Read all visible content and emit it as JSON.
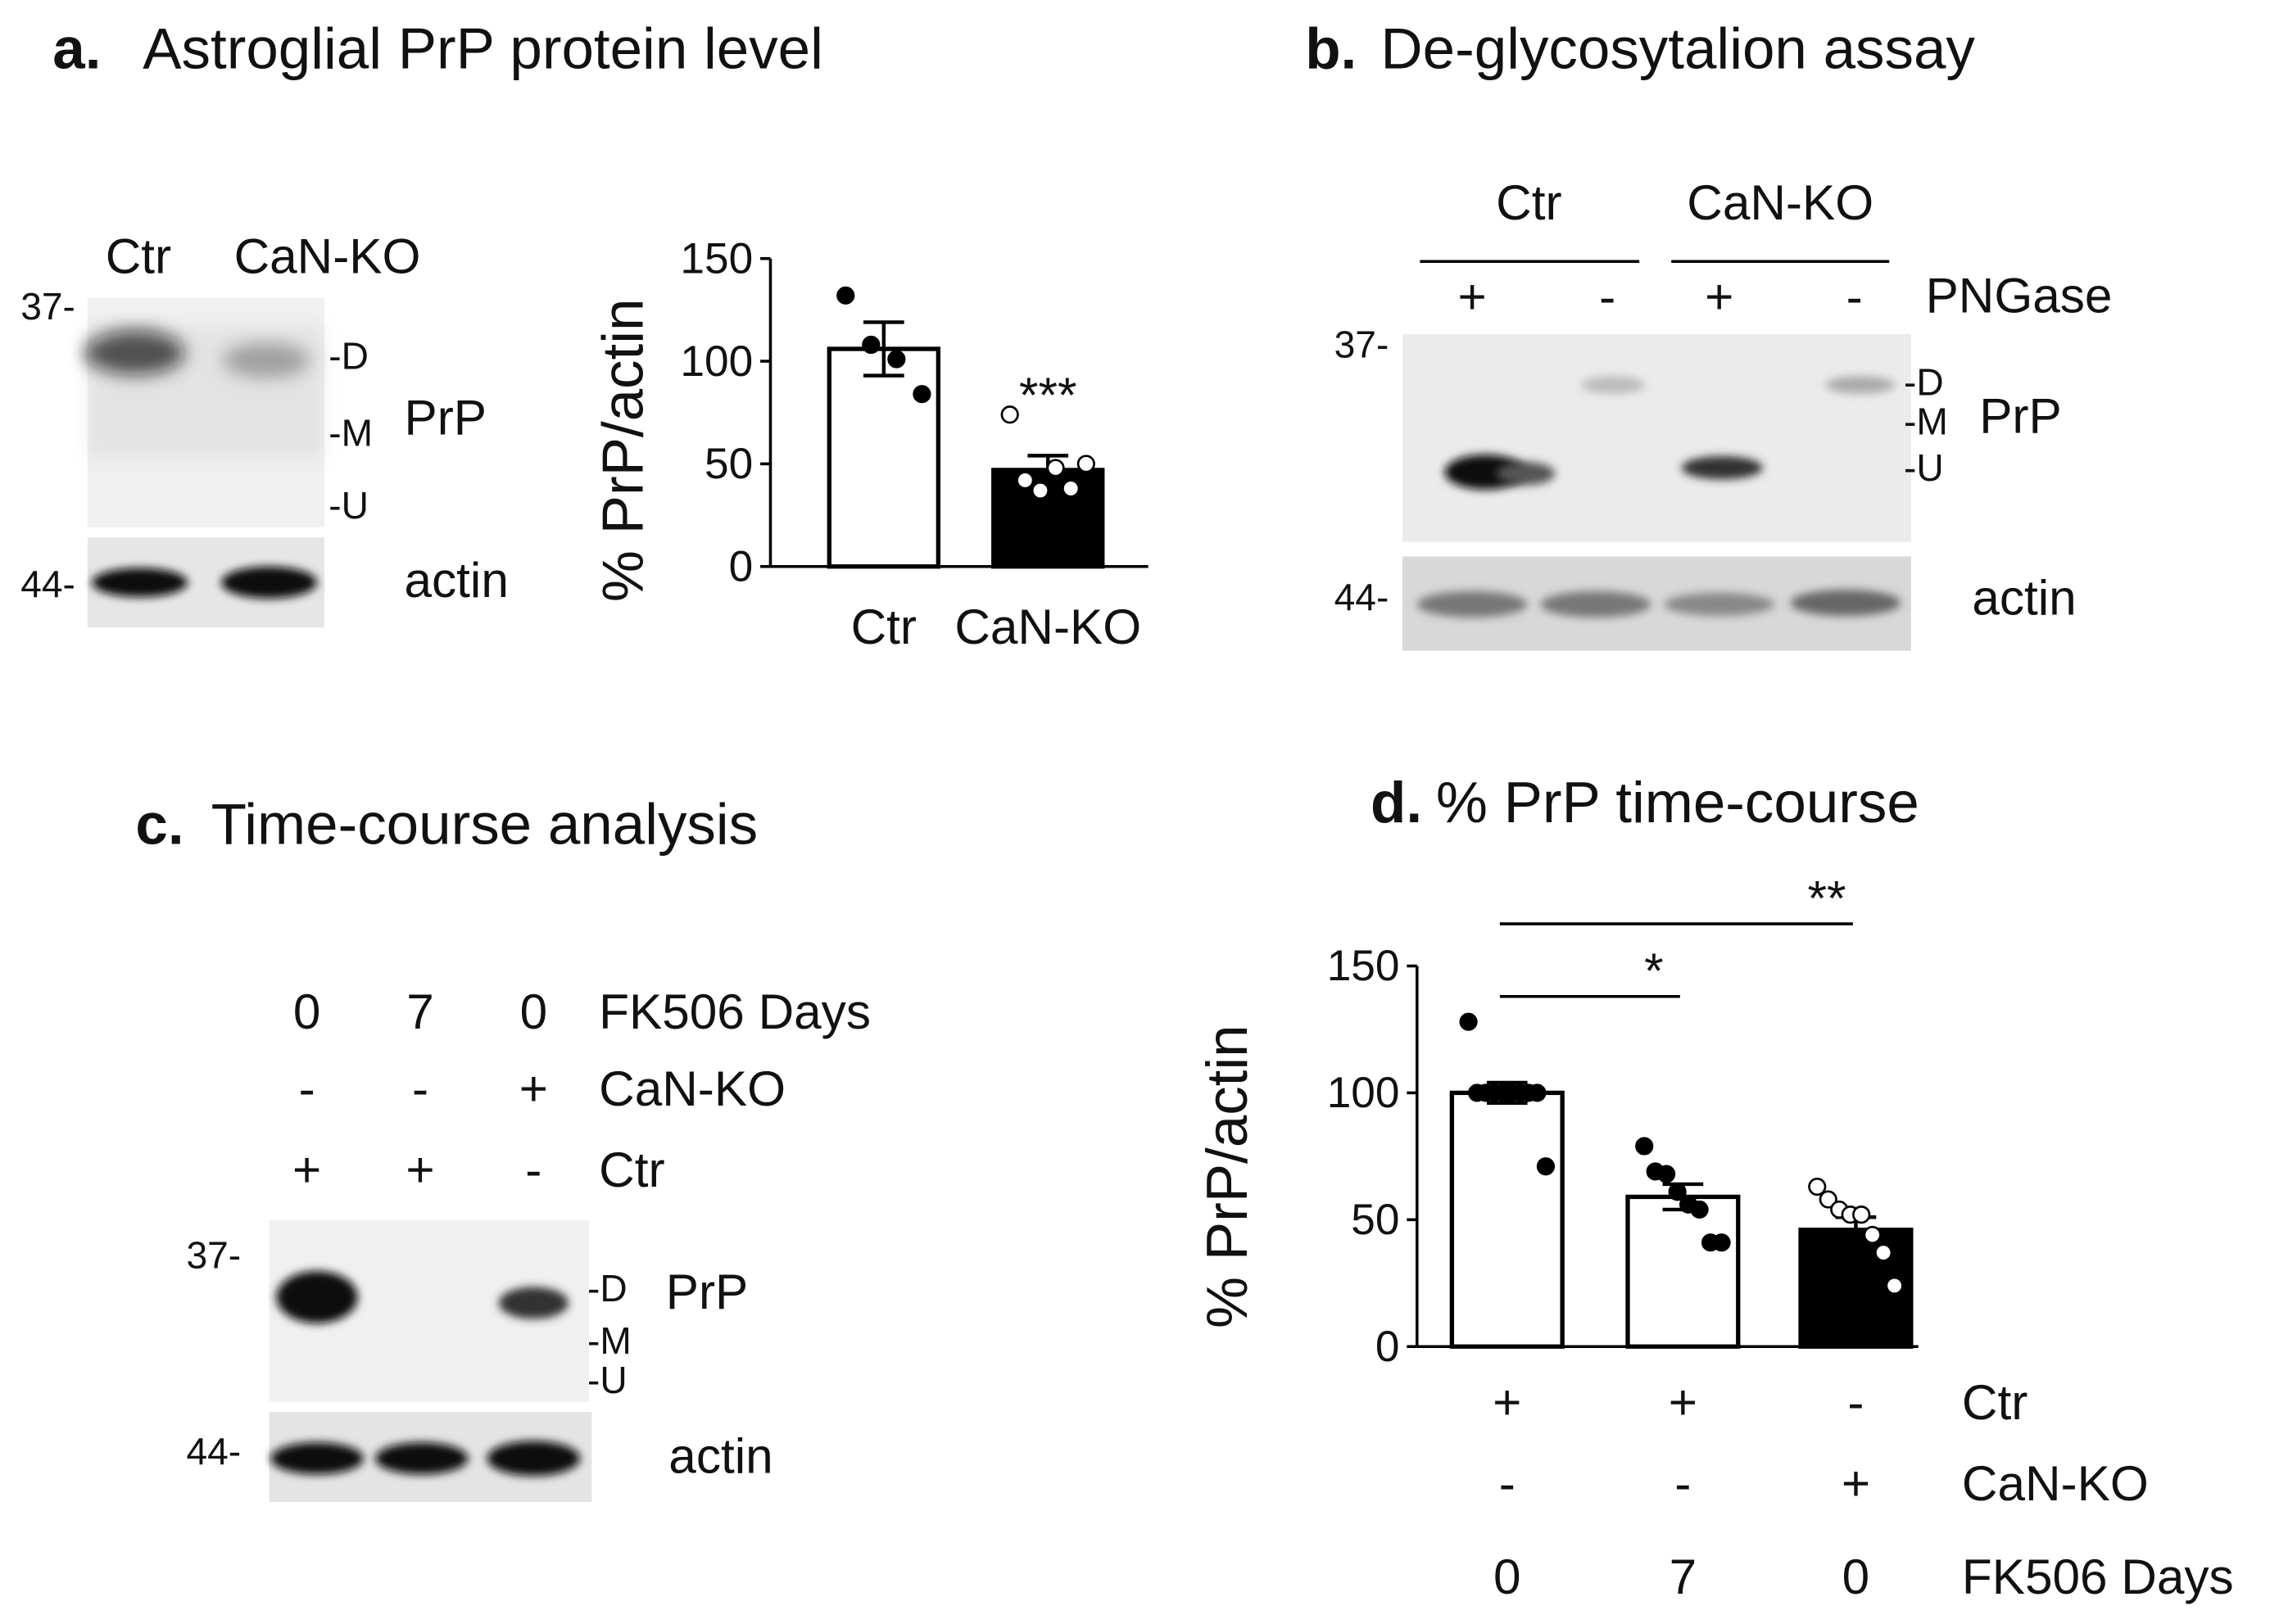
{
  "panel_a": {
    "letter": "a.",
    "title": "Astroglial PrP protein level",
    "lanes": [
      "Ctr",
      "CaN-KO"
    ],
    "markers": [
      "37-",
      "44-"
    ],
    "bands": [
      "-D",
      "-M",
      "-U"
    ],
    "protein": "PrP",
    "loading": "actin"
  },
  "panel_b": {
    "letter": "b.",
    "title": "De-glycosytalion assay",
    "groups": [
      "Ctr",
      "CaN-KO"
    ],
    "treatment": "PNGase",
    "treatment_signs": [
      "+",
      "-",
      "+",
      "-"
    ],
    "markers": [
      "37-",
      "44-"
    ],
    "bands": [
      "-D",
      "-M",
      "-U"
    ],
    "protein": "PrP",
    "loading": "actin"
  },
  "panel_c": {
    "letter": "c.",
    "title": "Time-course analysis",
    "conditions": [
      {
        "name": "FK506 Days",
        "values": [
          "0",
          "7",
          "0"
        ]
      },
      {
        "name": "CaN-KO",
        "values": [
          "-",
          "-",
          "+"
        ]
      },
      {
        "name": "Ctr",
        "values": [
          "+",
          "+",
          "-"
        ]
      }
    ],
    "markers": [
      "37-",
      "44-"
    ],
    "bands": [
      "-D",
      "-M",
      "-U"
    ],
    "protein": "PrP",
    "loading": "actin"
  },
  "chart_data": [
    {
      "type": "bar",
      "ylabel": "% PrP/actin",
      "categories": [
        "Ctr",
        "CaN-KO"
      ],
      "values": [
        106,
        47
      ],
      "errors": [
        13,
        7
      ],
      "points": [
        [
          132,
          108,
          101,
          84
        ],
        [
          74,
          42,
          37,
          48,
          38,
          50
        ]
      ],
      "colors": [
        "#ffffff",
        "#000000"
      ],
      "point_colors": [
        "#000000",
        "#ffffff"
      ],
      "ylim": [
        0,
        150
      ],
      "yticks": [
        0,
        50,
        100,
        150
      ],
      "annotations": [
        "***"
      ]
    },
    {
      "type": "bar",
      "letter": "d.",
      "title": "% PrP time-course",
      "ylabel": "% PrP/actin",
      "categories": [
        null,
        null,
        null
      ],
      "values": [
        100,
        59,
        46
      ],
      "errors": [
        4,
        5,
        5
      ],
      "points": [
        [
          128,
          100,
          100,
          100,
          100,
          100,
          100,
          100,
          100,
          71
        ],
        [
          79,
          69,
          68,
          61,
          56,
          54,
          41,
          41
        ],
        [
          63,
          58,
          54,
          52,
          52,
          44,
          37,
          24
        ]
      ],
      "colors": [
        "#ffffff",
        "#ffffff",
        "#000000"
      ],
      "point_colors": [
        "#000000",
        "#000000",
        "#ffffff"
      ],
      "ylim": [
        0,
        150
      ],
      "yticks": [
        0,
        50,
        100,
        150
      ],
      "annotations": [
        "*",
        "**"
      ],
      "conditions": [
        {
          "name": "Ctr",
          "values": [
            "+",
            "+",
            "-"
          ]
        },
        {
          "name": "CaN-KO",
          "values": [
            "-",
            "-",
            "+"
          ]
        },
        {
          "name": "FK506 Days",
          "values": [
            "0",
            "7",
            "0"
          ]
        }
      ]
    }
  ]
}
